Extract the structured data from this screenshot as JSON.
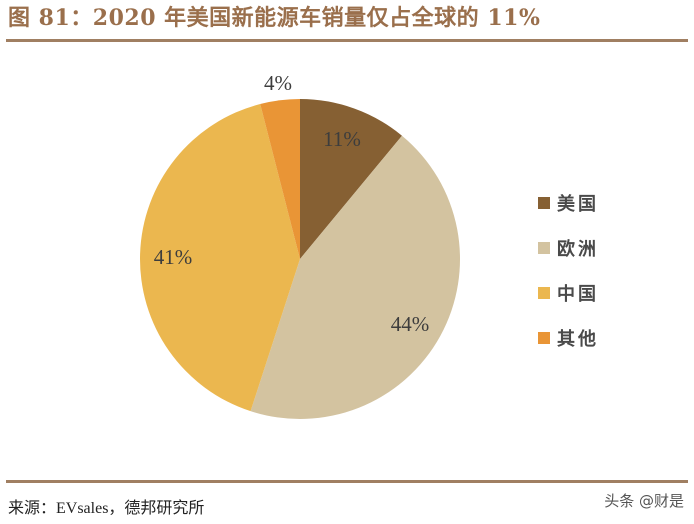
{
  "header": {
    "title": "图 81：2020 年美国新能源车销量仅占全球的 11%"
  },
  "footer": {
    "source": "来源：EVsales，德邦研究所",
    "watermark": "头条 @财是"
  },
  "legend": {
    "items": [
      {
        "label": "美国",
        "color": "#866033"
      },
      {
        "label": "欧洲",
        "color": "#d3c3a0"
      },
      {
        "label": "中国",
        "color": "#ebb74f"
      },
      {
        "label": "其他",
        "color": "#e99536"
      }
    ]
  },
  "labels": {
    "us": "11%",
    "eu": "44%",
    "cn": "41%",
    "other": "4%"
  },
  "chart_data": {
    "type": "pie",
    "title": "图 81：2020 年美国新能源车销量仅占全球的 11%",
    "categories": [
      "美国",
      "欧洲",
      "中国",
      "其他"
    ],
    "values": [
      11,
      44,
      41,
      4
    ],
    "unit": "%",
    "colors": [
      "#866033",
      "#d3c3a0",
      "#ebb74f",
      "#e99536"
    ],
    "start_angle": "12 o'clock, clockwise",
    "legend_position": "right",
    "source": "EVsales，德邦研究所"
  }
}
